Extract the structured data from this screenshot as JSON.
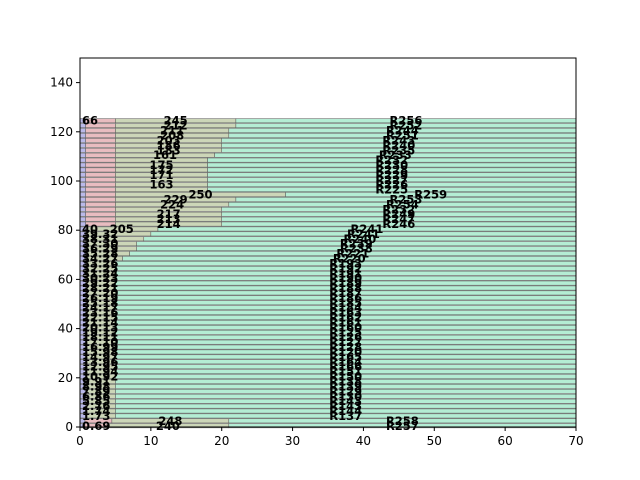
{
  "chart_data": {
    "type": "bar",
    "orientation": "horizontal",
    "stacked": true,
    "title": "",
    "xlabel": "",
    "ylabel": "",
    "xlim": [
      0,
      70
    ],
    "ylim": [
      0,
      150
    ],
    "xticks": [
      0,
      10,
      20,
      30,
      40,
      50,
      60,
      70
    ],
    "yticks": [
      0,
      20,
      40,
      60,
      80,
      100,
      120,
      140
    ],
    "grid": false,
    "segment_colors": [
      "#b9b9e8",
      "#e8bcc0",
      "#ccd6b8",
      "#b4edd4"
    ],
    "bars": [
      {
        "y": 0,
        "widths": [
          0.69,
          3.11,
          17.2,
          49.0
        ],
        "labels": [
          "0.69",
          "",
          "240",
          "R257"
        ]
      },
      {
        "y": 2,
        "widths": [
          0.7,
          3.8,
          16.5,
          49.0
        ],
        "labels": [
          "",
          "",
          "248",
          "R258"
        ]
      },
      {
        "y": 4,
        "widths": [
          0.8,
          4.2,
          65.0
        ],
        "labels": [
          "1.73",
          "",
          "R137"
        ]
      },
      {
        "y": 6,
        "widths": [
          0.8,
          4.2,
          65.0
        ],
        "labels": [
          "1.74",
          "",
          "R144"
        ]
      },
      {
        "y": 8,
        "widths": [
          0.8,
          4.2,
          65.0
        ],
        "labels": [
          "2.76",
          "",
          "R143"
        ]
      },
      {
        "y": 10,
        "widths": [
          0.8,
          4.2,
          65.0
        ],
        "labels": [
          "5.85",
          "",
          "R143"
        ]
      },
      {
        "y": 12,
        "widths": [
          0.8,
          4.2,
          65.0
        ],
        "labels": [
          "6.86",
          "",
          "R130"
        ]
      },
      {
        "y": 14,
        "widths": [
          0.8,
          4.2,
          65.0
        ],
        "labels": [
          "7.89",
          "",
          "R129"
        ]
      },
      {
        "y": 16,
        "widths": [
          0.8,
          4.2,
          65.0
        ],
        "labels": [
          "8.98",
          "",
          "R139"
        ]
      },
      {
        "y": 18,
        "widths": [
          0.8,
          4.2,
          65.0
        ],
        "labels": [
          "9.91",
          "",
          "R138"
        ]
      },
      {
        "y": 20,
        "widths": [
          0.8,
          4.2,
          65.0
        ],
        "labels": [
          "10.92",
          "",
          "R150"
        ]
      },
      {
        "y": 22,
        "widths": [
          0.8,
          4.2,
          65.0
        ],
        "labels": [
          "11.94",
          "",
          "R151"
        ]
      },
      {
        "y": 24,
        "widths": [
          0.8,
          4.2,
          65.0
        ],
        "labels": [
          "12.95",
          "",
          "R166"
        ]
      },
      {
        "y": 26,
        "widths": [
          0.8,
          4.2,
          65.0
        ],
        "labels": [
          "13.96",
          "",
          "R164"
        ]
      },
      {
        "y": 28,
        "widths": [
          0.8,
          4.2,
          65.0
        ],
        "labels": [
          "14.97",
          "",
          "R165"
        ]
      },
      {
        "y": 30,
        "widths": [
          0.8,
          4.2,
          65.0
        ],
        "labels": [
          "15.98",
          "",
          "R120"
        ]
      },
      {
        "y": 32,
        "widths": [
          0.8,
          4.2,
          65.0
        ],
        "labels": [
          "16.99",
          "",
          "R128"
        ]
      },
      {
        "y": 34,
        "widths": [
          0.8,
          4.2,
          65.0
        ],
        "labels": [
          "17.10",
          "",
          "R127"
        ]
      },
      {
        "y": 36,
        "widths": [
          0.8,
          4.2,
          65.0
        ],
        "labels": [
          "18.11",
          "",
          "R126"
        ]
      },
      {
        "y": 38,
        "widths": [
          0.8,
          4.2,
          65.0
        ],
        "labels": [
          "19.12",
          "",
          "R125"
        ]
      },
      {
        "y": 40,
        "widths": [
          0.8,
          4.2,
          65.0
        ],
        "labels": [
          "20.13",
          "",
          "R160"
        ]
      },
      {
        "y": 42,
        "widths": [
          0.8,
          4.2,
          65.0
        ],
        "labels": [
          "21.14",
          "",
          "R161"
        ]
      },
      {
        "y": 44,
        "widths": [
          0.8,
          4.2,
          65.0
        ],
        "labels": [
          "22.15",
          "",
          "R162"
        ]
      },
      {
        "y": 46,
        "widths": [
          0.8,
          4.2,
          65.0
        ],
        "labels": [
          "23.16",
          "",
          "R163"
        ]
      },
      {
        "y": 48,
        "widths": [
          0.8,
          4.2,
          65.0
        ],
        "labels": [
          "24.17",
          "",
          "R184"
        ]
      },
      {
        "y": 50,
        "widths": [
          0.8,
          4.2,
          65.0
        ],
        "labels": [
          "25.18",
          "",
          "R185"
        ]
      },
      {
        "y": 52,
        "widths": [
          0.8,
          4.2,
          65.0
        ],
        "labels": [
          "26.19",
          "",
          "R186"
        ]
      },
      {
        "y": 54,
        "widths": [
          0.8,
          4.2,
          65.0
        ],
        "labels": [
          "27.20",
          "",
          "R187"
        ]
      },
      {
        "y": 56,
        "widths": [
          0.8,
          4.2,
          65.0
        ],
        "labels": [
          "28.21",
          "",
          "R188"
        ]
      },
      {
        "y": 58,
        "widths": [
          0.8,
          4.2,
          65.0
        ],
        "labels": [
          "29.22",
          "",
          "R189"
        ]
      },
      {
        "y": 60,
        "widths": [
          0.8,
          4.2,
          65.0
        ],
        "labels": [
          "30.23",
          "",
          "R190"
        ]
      },
      {
        "y": 62,
        "widths": [
          0.8,
          4.2,
          65.0
        ],
        "labels": [
          "31.24",
          "",
          "R191"
        ]
      },
      {
        "y": 64,
        "widths": [
          0.8,
          4.2,
          65.0
        ],
        "labels": [
          "32.25",
          "",
          "R192"
        ]
      },
      {
        "y": 66,
        "widths": [
          0.8,
          4.2,
          65.0
        ],
        "labels": [
          "33.26",
          "",
          "R193"
        ]
      },
      {
        "y": 68,
        "widths": [
          0.8,
          5.2,
          64.0
        ],
        "labels": [
          "34.27",
          "",
          "R220"
        ]
      },
      {
        "y": 70,
        "widths": [
          0.8,
          6.2,
          63.0
        ],
        "labels": [
          "35.28",
          "",
          "R221"
        ]
      },
      {
        "y": 72,
        "widths": [
          0.8,
          7.2,
          62.0
        ],
        "labels": [
          "36.29",
          "",
          "R238"
        ]
      },
      {
        "y": 74,
        "widths": [
          0.8,
          7.2,
          62.0
        ],
        "labels": [
          "37.30",
          "",
          "R239"
        ]
      },
      {
        "y": 76,
        "widths": [
          0.8,
          8.2,
          61.0
        ],
        "labels": [
          "38.31",
          "",
          "R240"
        ]
      },
      {
        "y": 78,
        "widths": [
          0.8,
          9.2,
          60.0
        ],
        "labels": [
          "39.32",
          "",
          "R241"
        ]
      },
      {
        "y": 80,
        "widths": [
          0.8,
          10.2,
          59.0
        ],
        "labels": [
          "40",
          "205",
          "R241"
        ]
      },
      {
        "y": 82,
        "widths": [
          0.8,
          4.2,
          15.0,
          50.0
        ],
        "labels": [
          "",
          "",
          "214",
          "R246"
        ]
      },
      {
        "y": 84,
        "widths": [
          0.8,
          4.2,
          15.0,
          50.0
        ],
        "labels": [
          "",
          "",
          "213",
          "R247"
        ]
      },
      {
        "y": 86,
        "widths": [
          0.8,
          4.2,
          15.0,
          50.0
        ],
        "labels": [
          "",
          "",
          "217",
          "R249"
        ]
      },
      {
        "y": 88,
        "widths": [
          0.8,
          4.2,
          15.0,
          50.0
        ],
        "labels": [
          "",
          "",
          "",
          "R232"
        ]
      },
      {
        "y": 90,
        "widths": [
          0.8,
          4.2,
          16.0,
          49.0
        ],
        "labels": [
          "",
          "",
          "224",
          "R254"
        ]
      },
      {
        "y": 92,
        "widths": [
          0.8,
          4.2,
          17.0,
          48.0
        ],
        "labels": [
          "",
          "",
          "229",
          "R253"
        ]
      },
      {
        "y": 94,
        "widths": [
          0.8,
          4.2,
          24.0,
          41.0
        ],
        "labels": [
          "",
          "",
          "250",
          "R259"
        ]
      },
      {
        "y": 96,
        "widths": [
          0.8,
          4.2,
          13.0,
          52.0
        ],
        "labels": [
          "",
          "",
          "",
          "R225"
        ]
      },
      {
        "y": 98,
        "widths": [
          0.8,
          4.2,
          13.0,
          52.0
        ],
        "labels": [
          "",
          "",
          "163",
          "R226"
        ]
      },
      {
        "y": 100,
        "widths": [
          0.8,
          4.2,
          13.0,
          52.0
        ],
        "labels": [
          "",
          "",
          "",
          "R227"
        ]
      },
      {
        "y": 102,
        "widths": [
          0.8,
          4.2,
          13.0,
          52.0
        ],
        "labels": [
          "",
          "",
          "171",
          "R229"
        ]
      },
      {
        "y": 104,
        "widths": [
          0.8,
          4.2,
          13.0,
          52.0
        ],
        "labels": [
          "",
          "",
          "172",
          "R228"
        ]
      },
      {
        "y": 106,
        "widths": [
          0.8,
          4.2,
          13.0,
          52.0
        ],
        "labels": [
          "",
          "",
          "175",
          "R230"
        ]
      },
      {
        "y": 108,
        "widths": [
          0.8,
          4.2,
          13.0,
          52.0
        ],
        "labels": [
          "",
          "",
          "",
          "R232"
        ]
      },
      {
        "y": 110,
        "widths": [
          0.8,
          4.2,
          14.0,
          51.0
        ],
        "labels": [
          "",
          "",
          "161",
          "R233"
        ]
      },
      {
        "y": 112,
        "widths": [
          0.8,
          4.2,
          15.0,
          50.0
        ],
        "labels": [
          "",
          "",
          "183",
          "R235"
        ]
      },
      {
        "y": 114,
        "widths": [
          0.8,
          4.2,
          15.0,
          50.0
        ],
        "labels": [
          "",
          "",
          "186",
          "R240"
        ]
      },
      {
        "y": 116,
        "widths": [
          0.8,
          4.2,
          15.0,
          50.0
        ],
        "labels": [
          "",
          "",
          "203",
          "R243"
        ]
      },
      {
        "y": 118,
        "widths": [
          0.8,
          4.2,
          16.0,
          49.0
        ],
        "labels": [
          "",
          "",
          "208",
          "R251"
        ]
      },
      {
        "y": 120,
        "widths": [
          0.8,
          4.2,
          16.0,
          49.0
        ],
        "labels": [
          "",
          "",
          "211",
          "R244"
        ]
      },
      {
        "y": 122,
        "widths": [
          0.8,
          4.2,
          17.0,
          48.0
        ],
        "labels": [
          "",
          "",
          "212",
          "R252"
        ]
      },
      {
        "y": 124,
        "widths": [
          0.8,
          4.2,
          17.0,
          48.0
        ],
        "labels": [
          "66",
          "",
          "245",
          "R256"
        ]
      }
    ],
    "ticks_shown": {
      "x": [
        "0",
        "10",
        "20",
        "30",
        "40",
        "50",
        "60",
        "70"
      ],
      "y": [
        "0",
        "20",
        "40",
        "60",
        "80",
        "100",
        "120",
        "140"
      ]
    }
  }
}
